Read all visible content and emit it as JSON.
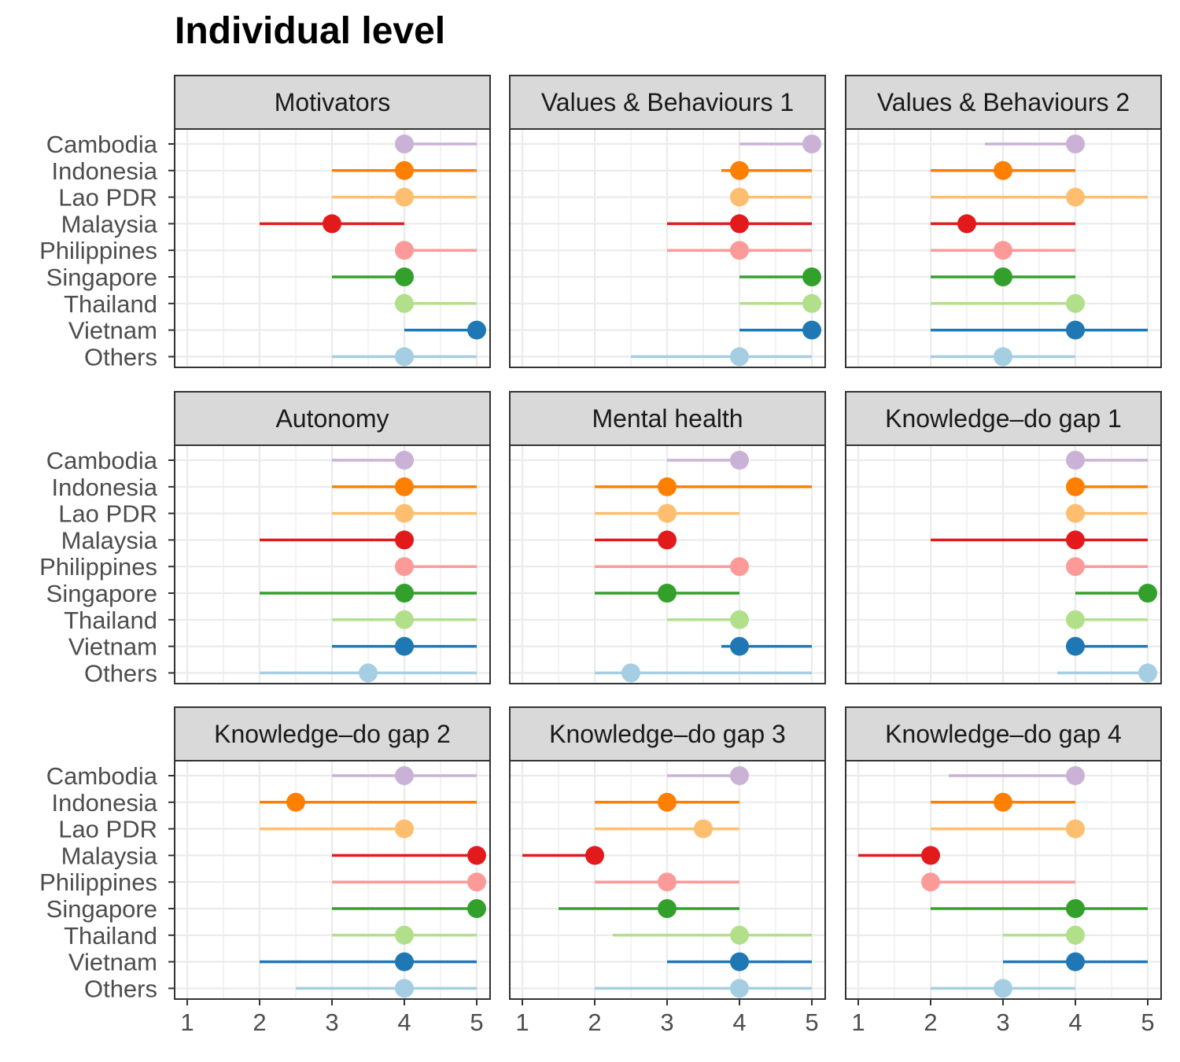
{
  "chart_data": {
    "type": "dot-range",
    "title": "Individual level",
    "x_ticks": [
      1,
      2,
      3,
      4,
      5
    ],
    "xlim": [
      0.8,
      5.2
    ],
    "grid": true,
    "legend": "none",
    "countries": [
      "Cambodia",
      "Indonesia",
      "Lao PDR",
      "Malaysia",
      "Philippines",
      "Singapore",
      "Thailand",
      "Vietnam",
      "Others"
    ],
    "colors": {
      "Cambodia": "#CAB2D6",
      "Indonesia": "#FF7F00",
      "Lao PDR": "#FDBF6F",
      "Malaysia": "#E31A1C",
      "Philippines": "#FB9A99",
      "Singapore": "#33A02C",
      "Thailand": "#B2DF8A",
      "Vietnam": "#1F78B4",
      "Others": "#A6CEE3"
    },
    "panels": [
      {
        "title": "Motivators",
        "data": [
          {
            "country": "Cambodia",
            "low": 4,
            "high": 5,
            "median": 4
          },
          {
            "country": "Indonesia",
            "low": 3,
            "high": 5,
            "median": 4
          },
          {
            "country": "Lao PDR",
            "low": 3,
            "high": 5,
            "median": 4
          },
          {
            "country": "Malaysia",
            "low": 2,
            "high": 4,
            "median": 3
          },
          {
            "country": "Philippines",
            "low": 4,
            "high": 5,
            "median": 4
          },
          {
            "country": "Singapore",
            "low": 3,
            "high": 4,
            "median": 4
          },
          {
            "country": "Thailand",
            "low": 4,
            "high": 5,
            "median": 4
          },
          {
            "country": "Vietnam",
            "low": 4,
            "high": 5,
            "median": 5
          },
          {
            "country": "Others",
            "low": 3,
            "high": 5,
            "median": 4
          }
        ]
      },
      {
        "title": "Values & Behaviours 1",
        "data": [
          {
            "country": "Cambodia",
            "low": 4,
            "high": 5,
            "median": 5
          },
          {
            "country": "Indonesia",
            "low": 3.75,
            "high": 5,
            "median": 4
          },
          {
            "country": "Lao PDR",
            "low": 4,
            "high": 5,
            "median": 4
          },
          {
            "country": "Malaysia",
            "low": 3,
            "high": 5,
            "median": 4
          },
          {
            "country": "Philippines",
            "low": 3,
            "high": 5,
            "median": 4
          },
          {
            "country": "Singapore",
            "low": 4,
            "high": 5,
            "median": 5
          },
          {
            "country": "Thailand",
            "low": 4,
            "high": 5,
            "median": 5
          },
          {
            "country": "Vietnam",
            "low": 4,
            "high": 5,
            "median": 5
          },
          {
            "country": "Others",
            "low": 2.5,
            "high": 5,
            "median": 4
          }
        ]
      },
      {
        "title": "Values & Behaviours 2",
        "data": [
          {
            "country": "Cambodia",
            "low": 2.75,
            "high": 4,
            "median": 4
          },
          {
            "country": "Indonesia",
            "low": 2,
            "high": 4,
            "median": 3
          },
          {
            "country": "Lao PDR",
            "low": 2,
            "high": 5,
            "median": 4
          },
          {
            "country": "Malaysia",
            "low": 2,
            "high": 4,
            "median": 2.5
          },
          {
            "country": "Philippines",
            "low": 2,
            "high": 4,
            "median": 3
          },
          {
            "country": "Singapore",
            "low": 2,
            "high": 4,
            "median": 3
          },
          {
            "country": "Thailand",
            "low": 2,
            "high": 4,
            "median": 4
          },
          {
            "country": "Vietnam",
            "low": 2,
            "high": 5,
            "median": 4
          },
          {
            "country": "Others",
            "low": 2,
            "high": 4,
            "median": 3
          }
        ]
      },
      {
        "title": "Autonomy",
        "data": [
          {
            "country": "Cambodia",
            "low": 3,
            "high": 4,
            "median": 4
          },
          {
            "country": "Indonesia",
            "low": 3,
            "high": 5,
            "median": 4
          },
          {
            "country": "Lao PDR",
            "low": 3,
            "high": 5,
            "median": 4
          },
          {
            "country": "Malaysia",
            "low": 2,
            "high": 4,
            "median": 4
          },
          {
            "country": "Philippines",
            "low": 4,
            "high": 5,
            "median": 4
          },
          {
            "country": "Singapore",
            "low": 2,
            "high": 5,
            "median": 4
          },
          {
            "country": "Thailand",
            "low": 3,
            "high": 5,
            "median": 4
          },
          {
            "country": "Vietnam",
            "low": 3,
            "high": 5,
            "median": 4
          },
          {
            "country": "Others",
            "low": 2,
            "high": 5,
            "median": 3.5
          }
        ]
      },
      {
        "title": "Mental health",
        "data": [
          {
            "country": "Cambodia",
            "low": 3,
            "high": 4,
            "median": 4
          },
          {
            "country": "Indonesia",
            "low": 2,
            "high": 5,
            "median": 3
          },
          {
            "country": "Lao PDR",
            "low": 2,
            "high": 4,
            "median": 3
          },
          {
            "country": "Malaysia",
            "low": 2,
            "high": 3,
            "median": 3
          },
          {
            "country": "Philippines",
            "low": 2,
            "high": 4,
            "median": 4
          },
          {
            "country": "Singapore",
            "low": 2,
            "high": 4,
            "median": 3
          },
          {
            "country": "Thailand",
            "low": 3,
            "high": 4,
            "median": 4
          },
          {
            "country": "Vietnam",
            "low": 3.75,
            "high": 5,
            "median": 4
          },
          {
            "country": "Others",
            "low": 2,
            "high": 5,
            "median": 2.5
          }
        ]
      },
      {
        "title": "Knowledge–do gap 1",
        "data": [
          {
            "country": "Cambodia",
            "low": 4,
            "high": 5,
            "median": 4
          },
          {
            "country": "Indonesia",
            "low": 4,
            "high": 5,
            "median": 4
          },
          {
            "country": "Lao PDR",
            "low": 4,
            "high": 5,
            "median": 4
          },
          {
            "country": "Malaysia",
            "low": 2,
            "high": 5,
            "median": 4
          },
          {
            "country": "Philippines",
            "low": 4,
            "high": 5,
            "median": 4
          },
          {
            "country": "Singapore",
            "low": 4,
            "high": 5,
            "median": 5
          },
          {
            "country": "Thailand",
            "low": 4,
            "high": 5,
            "median": 4
          },
          {
            "country": "Vietnam",
            "low": 4,
            "high": 5,
            "median": 4
          },
          {
            "country": "Others",
            "low": 3.75,
            "high": 5,
            "median": 5
          }
        ]
      },
      {
        "title": "Knowledge–do gap 2",
        "data": [
          {
            "country": "Cambodia",
            "low": 3,
            "high": 5,
            "median": 4
          },
          {
            "country": "Indonesia",
            "low": 2,
            "high": 5,
            "median": 2.5
          },
          {
            "country": "Lao PDR",
            "low": 2,
            "high": 4,
            "median": 4
          },
          {
            "country": "Malaysia",
            "low": 3,
            "high": 5,
            "median": 5
          },
          {
            "country": "Philippines",
            "low": 3,
            "high": 5,
            "median": 5
          },
          {
            "country": "Singapore",
            "low": 3,
            "high": 5,
            "median": 5
          },
          {
            "country": "Thailand",
            "low": 3,
            "high": 5,
            "median": 4
          },
          {
            "country": "Vietnam",
            "low": 2,
            "high": 5,
            "median": 4
          },
          {
            "country": "Others",
            "low": 2.5,
            "high": 5,
            "median": 4
          }
        ]
      },
      {
        "title": "Knowledge–do gap 3",
        "data": [
          {
            "country": "Cambodia",
            "low": 3,
            "high": 4,
            "median": 4
          },
          {
            "country": "Indonesia",
            "low": 2,
            "high": 4,
            "median": 3
          },
          {
            "country": "Lao PDR",
            "low": 2,
            "high": 4,
            "median": 3.5
          },
          {
            "country": "Malaysia",
            "low": 1,
            "high": 2,
            "median": 2
          },
          {
            "country": "Philippines",
            "low": 2,
            "high": 4,
            "median": 3
          },
          {
            "country": "Singapore",
            "low": 1.5,
            "high": 4,
            "median": 3
          },
          {
            "country": "Thailand",
            "low": 2.25,
            "high": 5,
            "median": 4
          },
          {
            "country": "Vietnam",
            "low": 3,
            "high": 5,
            "median": 4
          },
          {
            "country": "Others",
            "low": 2,
            "high": 5,
            "median": 4
          }
        ]
      },
      {
        "title": "Knowledge–do gap 4",
        "data": [
          {
            "country": "Cambodia",
            "low": 2.25,
            "high": 4,
            "median": 4
          },
          {
            "country": "Indonesia",
            "low": 2,
            "high": 4,
            "median": 3
          },
          {
            "country": "Lao PDR",
            "low": 2,
            "high": 4,
            "median": 4
          },
          {
            "country": "Malaysia",
            "low": 1,
            "high": 2,
            "median": 2
          },
          {
            "country": "Philippines",
            "low": 2,
            "high": 4,
            "median": 2
          },
          {
            "country": "Singapore",
            "low": 2,
            "high": 5,
            "median": 4
          },
          {
            "country": "Thailand",
            "low": 3,
            "high": 4,
            "median": 4
          },
          {
            "country": "Vietnam",
            "low": 3,
            "high": 5,
            "median": 4
          },
          {
            "country": "Others",
            "low": 2,
            "high": 4,
            "median": 3
          }
        ]
      }
    ]
  }
}
